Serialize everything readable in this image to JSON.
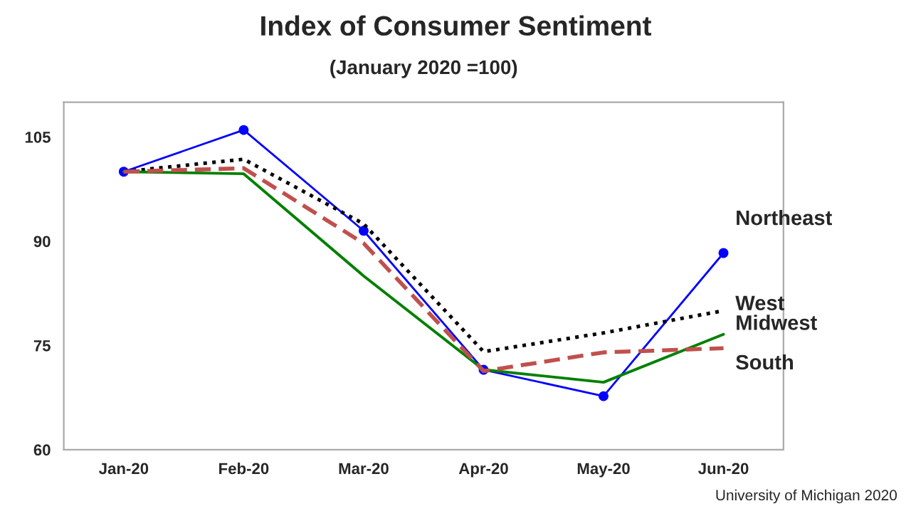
{
  "chart_data": {
    "type": "line",
    "title": "Index of Consumer Sentiment",
    "subtitle": "(January 2020 =100)",
    "categories": [
      "Jan-20",
      "Feb-20",
      "Mar-20",
      "Apr-20",
      "May-20",
      "Jun-20"
    ],
    "series": [
      {
        "name": "Northeast",
        "color": "#0000ff",
        "marker": "circle",
        "line_style": "solid",
        "values": [
          100,
          106,
          91.5,
          71.5,
          67.7,
          88.3
        ]
      },
      {
        "name": "West",
        "color": "#000000",
        "marker": "none",
        "line_style": "dotted",
        "values": [
          100,
          101.8,
          92.5,
          74.1,
          76.8,
          80
        ]
      },
      {
        "name": "Midwest",
        "color": "#008000",
        "marker": "none",
        "line_style": "solid",
        "values": [
          100,
          99.7,
          85,
          71.5,
          69.7,
          76.6
        ]
      },
      {
        "name": "South",
        "color": "#c0504d",
        "marker": "none",
        "line_style": "dashed",
        "values": [
          100,
          100.5,
          89.7,
          71.3,
          74,
          74.6
        ]
      }
    ],
    "ylim": [
      60,
      110
    ],
    "yticks": [
      60,
      75,
      90,
      105
    ],
    "grid": false,
    "legend": false,
    "annotations": [
      "University of Michigan 2020"
    ]
  }
}
